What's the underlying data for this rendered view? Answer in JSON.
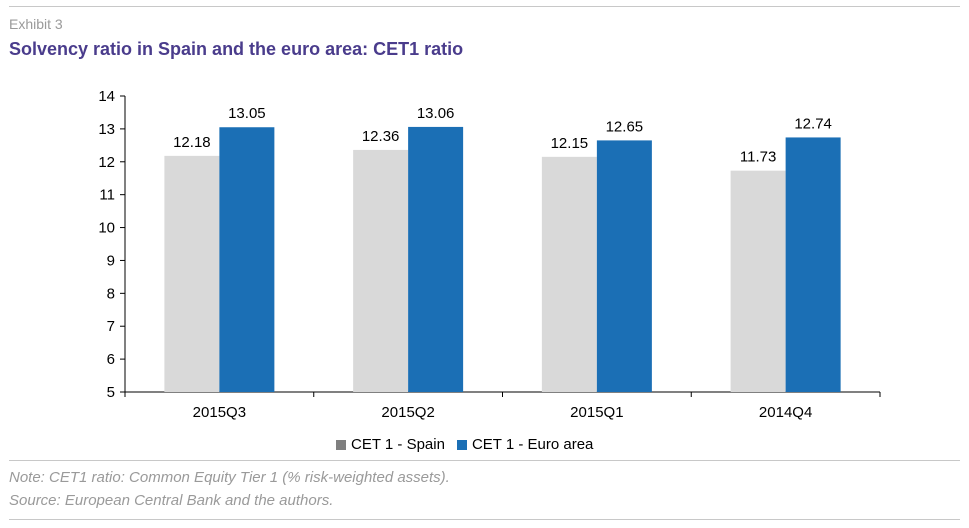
{
  "header": {
    "exhibit": "Exhibit 3",
    "title": "Solvency ratio in Spain and the euro area: CET1 ratio"
  },
  "chart_data": {
    "type": "bar",
    "categories": [
      "2015Q3",
      "2015Q2",
      "2015Q1",
      "2014Q4"
    ],
    "series": [
      {
        "name": "CET 1 - Spain",
        "color": "#d9d9d9",
        "values": [
          12.18,
          12.36,
          12.15,
          11.73
        ]
      },
      {
        "name": "CET 1 - Euro area",
        "color": "#1b6fb5",
        "values": [
          13.05,
          13.06,
          12.65,
          12.74
        ]
      }
    ],
    "data_labels": [
      [
        "12.18",
        "12.36",
        "12.15",
        "11.73"
      ],
      [
        "13.05",
        "13.06",
        "12.65",
        "12.74"
      ]
    ],
    "ylim": [
      5,
      14
    ],
    "yticks": [
      5,
      6,
      7,
      8,
      9,
      10,
      11,
      12,
      13,
      14
    ],
    "grid": false,
    "legend_position": "bottom",
    "legend_swatch_colors": [
      "#7f7f7f",
      "#1b6fb5"
    ]
  },
  "footer": {
    "note": "Note: CET1 ratio: Common Equity Tier 1 (% risk-weighted assets).",
    "source": "Source: European Central Bank and the authors."
  }
}
